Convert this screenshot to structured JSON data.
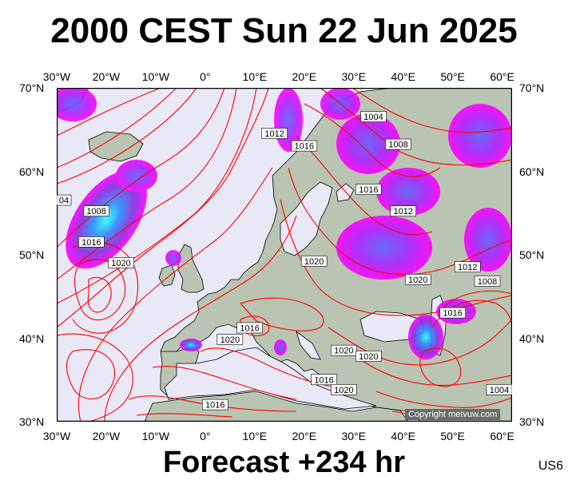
{
  "title": "2000 CEST Sun 22 Jun 2025",
  "footer": "Forecast +234 hr",
  "model_code": "US6",
  "copyright": "Copyright metvuw.com",
  "lon_labels": [
    "30°W",
    "20°W",
    "10°W",
    "0°",
    "10°E",
    "20°E",
    "30°E",
    "40°E",
    "50°E",
    "60°E"
  ],
  "lat_labels": [
    "70°N",
    "60°N",
    "50°N",
    "40°N",
    "30°N"
  ],
  "colors": {
    "isobar": "#ff0000",
    "sea": "#e8e8f6",
    "land": "#b7c3b0",
    "precip": "#ff00ff",
    "heavy": "#3050ff",
    "frame": "#000000"
  },
  "isobar_labels": [
    {
      "text": "1004",
      "lon": 34,
      "lat": 66.5
    },
    {
      "text": "1012",
      "lon": 14,
      "lat": 64.5
    },
    {
      "text": "1016",
      "lon": 20,
      "lat": 63.0
    },
    {
      "text": "1008",
      "lon": 39,
      "lat": 63.2
    },
    {
      "text": "1016",
      "lon": 33,
      "lat": 57.8
    },
    {
      "text": "1012",
      "lon": 40,
      "lat": 55.2
    },
    {
      "text": "04",
      "lon": -29,
      "lat": 56.5
    },
    {
      "text": "1008",
      "lon": -22,
      "lat": 55.2
    },
    {
      "text": "1016",
      "lon": -23,
      "lat": 51.5
    },
    {
      "text": "1020",
      "lon": -17,
      "lat": 49.0
    },
    {
      "text": "1020",
      "lon": 22,
      "lat": 49.2
    },
    {
      "text": "1020",
      "lon": 43,
      "lat": 47.0
    },
    {
      "text": "1012",
      "lon": 53,
      "lat": 48.5
    },
    {
      "text": "1008",
      "lon": 57,
      "lat": 46.8
    },
    {
      "text": "1016",
      "lon": 50,
      "lat": 43.0
    },
    {
      "text": "1016",
      "lon": 9,
      "lat": 41.2
    },
    {
      "text": "1020",
      "lon": 5,
      "lat": 39.8
    },
    {
      "text": "1020",
      "lon": 28,
      "lat": 38.5
    },
    {
      "text": "1020",
      "lon": 33,
      "lat": 37.8
    },
    {
      "text": "1016",
      "lon": 24,
      "lat": 35.0
    },
    {
      "text": "1020",
      "lon": 28,
      "lat": 33.8
    },
    {
      "text": "1016",
      "lon": 2,
      "lat": 32.0
    },
    {
      "text": "1004",
      "lon": 64,
      "lat": 33.8
    }
  ]
}
